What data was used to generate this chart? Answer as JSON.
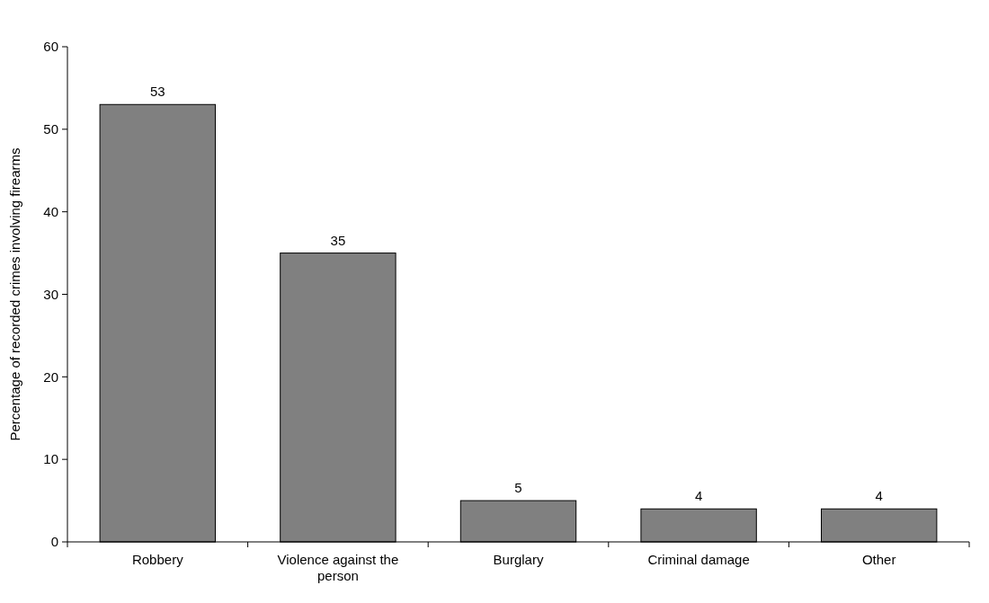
{
  "chart_data": {
    "type": "bar",
    "ylabel": "Percentage of recorded crimes involving firearms",
    "categories": [
      "Robbery",
      "Violence against the person",
      "Burglary",
      "Criminal damage",
      "Other"
    ],
    "values": [
      53,
      35,
      5,
      4,
      4
    ],
    "color": "#808080",
    "ylim": [
      0,
      60
    ],
    "yticks": [
      0,
      10,
      20,
      30,
      40,
      50,
      60
    ],
    "data_labels": true
  }
}
